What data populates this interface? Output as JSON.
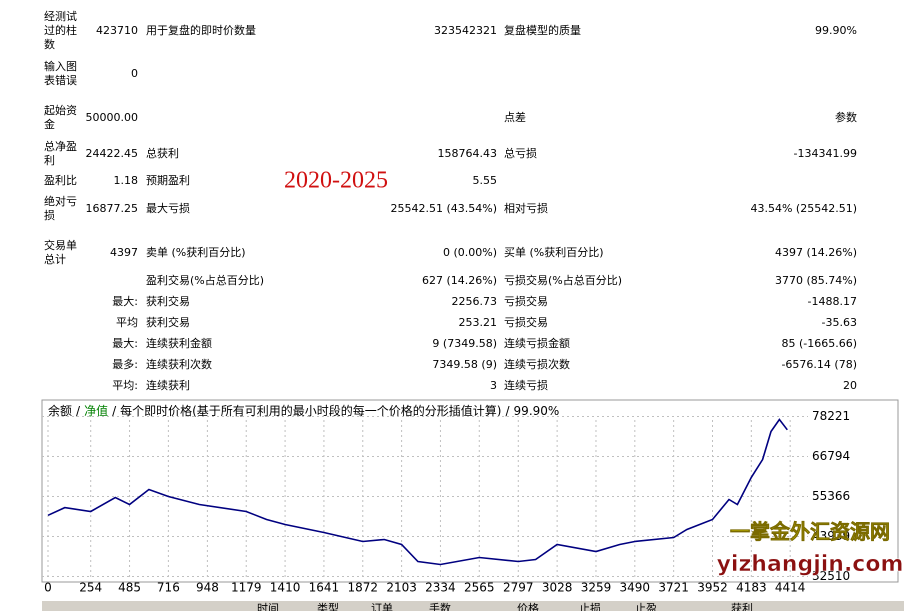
{
  "stats": {
    "rows": [
      [
        "经测试过的柱数",
        "423710",
        "用于复盘的即时价数量",
        "323542321",
        "复盘模型的质量",
        "99.90%"
      ],
      [
        "输入图表错误",
        "0",
        null,
        null,
        null,
        null
      ],
      [
        "起始资金",
        "50000.00",
        null,
        null,
        "点差",
        "参数"
      ],
      [
        "总净盈利",
        "24422.45",
        "总获利",
        "158764.43",
        "总亏损",
        "-134341.99"
      ],
      [
        "盈利比",
        "1.18",
        "预期盈利",
        "5.55",
        null,
        null
      ],
      [
        "绝对亏损",
        "16877.25",
        "最大亏损",
        "25542.51 (43.54%)",
        "相对亏损",
        "43.54% (25542.51)"
      ],
      [
        "交易单总计",
        "4397",
        "卖单 (%获利百分比)",
        "0 (0.00%)",
        "买单 (%获利百分比)",
        "4397 (14.26%)"
      ],
      [
        null,
        null,
        "盈利交易(%占总百分比)",
        "627 (14.26%)",
        "亏损交易(%占总百分比)",
        "3770 (85.74%)"
      ],
      [
        null,
        "最大:",
        "获利交易",
        "2256.73",
        "亏损交易",
        "-1488.17"
      ],
      [
        null,
        "平均",
        "获利交易",
        "253.21",
        "亏损交易",
        "-35.63"
      ],
      [
        null,
        "最大:",
        "连续获利金额",
        "9 (7349.58)",
        "连续亏损金额",
        "85 (-1665.66)"
      ],
      [
        null,
        "最多:",
        "连续获利次数",
        "7349.58 (9)",
        "连续亏损次数",
        "-6576.14 (78)"
      ],
      [
        null,
        "平均:",
        "连续获利",
        "3",
        "连续亏损",
        "20"
      ]
    ]
  },
  "overlay": "2020-2025",
  "watermark": {
    "site": "一掌金外汇资源网",
    "url": "yizhangjin.com"
  },
  "chart_data": {
    "type": "line",
    "legend": {
      "items": [
        "余额",
        "净值",
        "每个即时价格(基于所有可利用的最小时段的每一个价格的分形插值计算)",
        "99.90%"
      ],
      "colors": [
        "#000000",
        "#008000",
        "#000000",
        "#000000"
      ],
      "separator": "/"
    },
    "x": [
      0,
      100,
      254,
      400,
      485,
      600,
      716,
      900,
      1179,
      1300,
      1410,
      1641,
      1872,
      2000,
      2103,
      2200,
      2334,
      2565,
      2797,
      2900,
      3028,
      3259,
      3400,
      3490,
      3721,
      3800,
      3952,
      4050,
      4100,
      4183,
      4250,
      4300,
      4350,
      4397
    ],
    "series": [
      {
        "name": "余额",
        "color": "#000080",
        "values": [
          50000,
          52200,
          51080,
          55080,
          53080,
          57365,
          55365,
          53080,
          51080,
          48800,
          47370,
          45080,
          42510,
          43080,
          41650,
          36800,
          35940,
          37940,
          36800,
          37370,
          41650,
          39650,
          41650,
          42510,
          43650,
          45940,
          48800,
          54500,
          53080,
          60800,
          65940,
          73940,
          77370,
          74422
        ]
      }
    ],
    "xlim": [
      0,
      4520
    ],
    "ylim": [
      31500,
      81500
    ],
    "xticks": [
      0,
      254,
      485,
      716,
      948,
      1179,
      1410,
      1641,
      1872,
      2103,
      2334,
      2565,
      2797,
      3028,
      3259,
      3490,
      3721,
      3952,
      4183,
      4414
    ],
    "yticks": [
      78221,
      66794,
      55366,
      43939,
      32510
    ],
    "grid": true
  },
  "table": {
    "header": [
      "时间",
      "类型",
      "订单",
      "手数",
      "价格",
      "止损",
      "止盈",
      "获利"
    ]
  }
}
